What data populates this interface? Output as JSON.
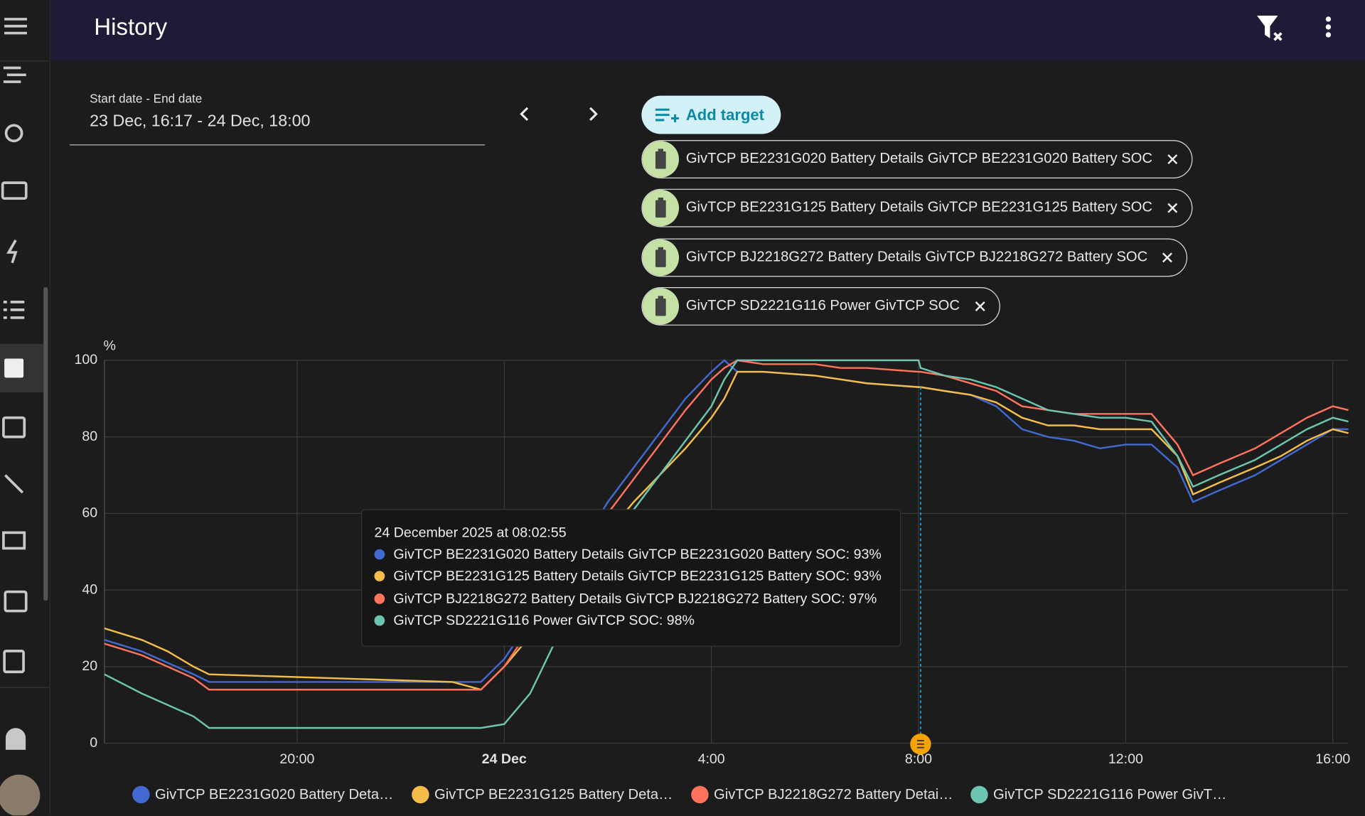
{
  "header": {
    "title": "History"
  },
  "date_picker": {
    "label": "Start date - End date",
    "value": "23 Dec, 16:17 - 24 Dec, 18:00"
  },
  "add_target": "Add target",
  "targets": [
    "GivTCP BE2231G020 Battery Details GivTCP BE2231G020 Battery SOC",
    "GivTCP BE2231G125 Battery Details GivTCP BE2231G125 Battery SOC",
    "GivTCP BJ2218G272 Battery Details GivTCP BJ2218G272 Battery SOC",
    "GivTCP SD2221G116 Power GivTCP SOC"
  ],
  "tooltip": {
    "title": "24 December 2025 at 08:02:55",
    "items": [
      "GivTCP BE2231G020 Battery Details GivTCP BE2231G020 Battery SOC: 93%",
      "GivTCP BE2231G125 Battery Details GivTCP BE2231G125 Battery SOC: 93%",
      "GivTCP BJ2218G272 Battery Details GivTCP BJ2218G272 Battery SOC: 97%",
      "GivTCP SD2221G116 Power GivTCP SOC: 98%"
    ]
  },
  "chart_data": {
    "type": "line",
    "y_label": "%",
    "grid": true,
    "x": [
      -7.72,
      -7,
      -6.5,
      -6,
      -5.7,
      -1,
      -0.45,
      0,
      0.5,
      1,
      1.5,
      2,
      2.5,
      3,
      3.5,
      4,
      4.25,
      4.5,
      5,
      6,
      6.5,
      7,
      8,
      8.04,
      8.5,
      9,
      9.5,
      10,
      10.5,
      11,
      11.5,
      12,
      12.5,
      13,
      13.3,
      13.8,
      14.5,
      15,
      15.5,
      16,
      16.3
    ],
    "xlim": [
      -7.72,
      16.3
    ],
    "xticks": [
      {
        "value": -4,
        "label": "20:00"
      },
      {
        "value": 0,
        "label": "24 Dec"
      },
      {
        "value": 4,
        "label": "4:00"
      },
      {
        "value": 8,
        "label": "8:00"
      },
      {
        "value": 12,
        "label": "12:00"
      },
      {
        "value": 16,
        "label": "16:00"
      }
    ],
    "ylim": [
      0,
      100
    ],
    "yticks": [
      0,
      20,
      40,
      60,
      80,
      100
    ],
    "series": [
      {
        "name": "GivTCP BE2231G020 Battery Details GivTCP BE2231G020 Battery SOC",
        "color": "#4269d0",
        "values": [
          27,
          24,
          21,
          18,
          16,
          16,
          16,
          22,
          32,
          42,
          52,
          63,
          72,
          81,
          90,
          97,
          100,
          97,
          97,
          96,
          95,
          94,
          93,
          93,
          92,
          91,
          88,
          82,
          80,
          79,
          77,
          78,
          78,
          72,
          63,
          66,
          70,
          74,
          78,
          82,
          82
        ]
      },
      {
        "name": "GivTCP BE2231G125 Battery Details GivTCP BE2231G125 Battery SOC",
        "color": "#f4bd4a",
        "values": [
          30,
          27,
          24,
          20,
          18,
          16,
          14,
          20,
          28,
          37,
          46,
          55,
          63,
          70,
          77,
          85,
          90,
          97,
          97,
          96,
          95,
          94,
          93,
          93,
          92,
          91,
          89,
          85,
          83,
          83,
          82,
          82,
          82,
          75,
          65,
          68,
          72,
          75,
          79,
          82,
          81
        ]
      },
      {
        "name": "GivTCP BJ2218G272 Battery Details GivTCP BJ2218G272 Battery SOC",
        "color": "#ff725c",
        "values": [
          26,
          23,
          20,
          17,
          14,
          14,
          14,
          20,
          30,
          40,
          50,
          60,
          69,
          78,
          87,
          95,
          98,
          100,
          99,
          99,
          98,
          98,
          97,
          97,
          96,
          94,
          92,
          88,
          87,
          86,
          86,
          86,
          86,
          78,
          70,
          73,
          77,
          81,
          85,
          88,
          87
        ]
      },
      {
        "name": "GivTCP SD2221G116 Power GivTCP SOC",
        "color": "#6cc5b0",
        "values": [
          18,
          13,
          10,
          7,
          4,
          4,
          4,
          5,
          13,
          27,
          40,
          52,
          61,
          70,
          79,
          88,
          95,
          100,
          100,
          100,
          100,
          100,
          100,
          98,
          96,
          95,
          93,
          90,
          87,
          86,
          85,
          85,
          84,
          75,
          67,
          70,
          74,
          78,
          82,
          85,
          84
        ]
      }
    ]
  }
}
